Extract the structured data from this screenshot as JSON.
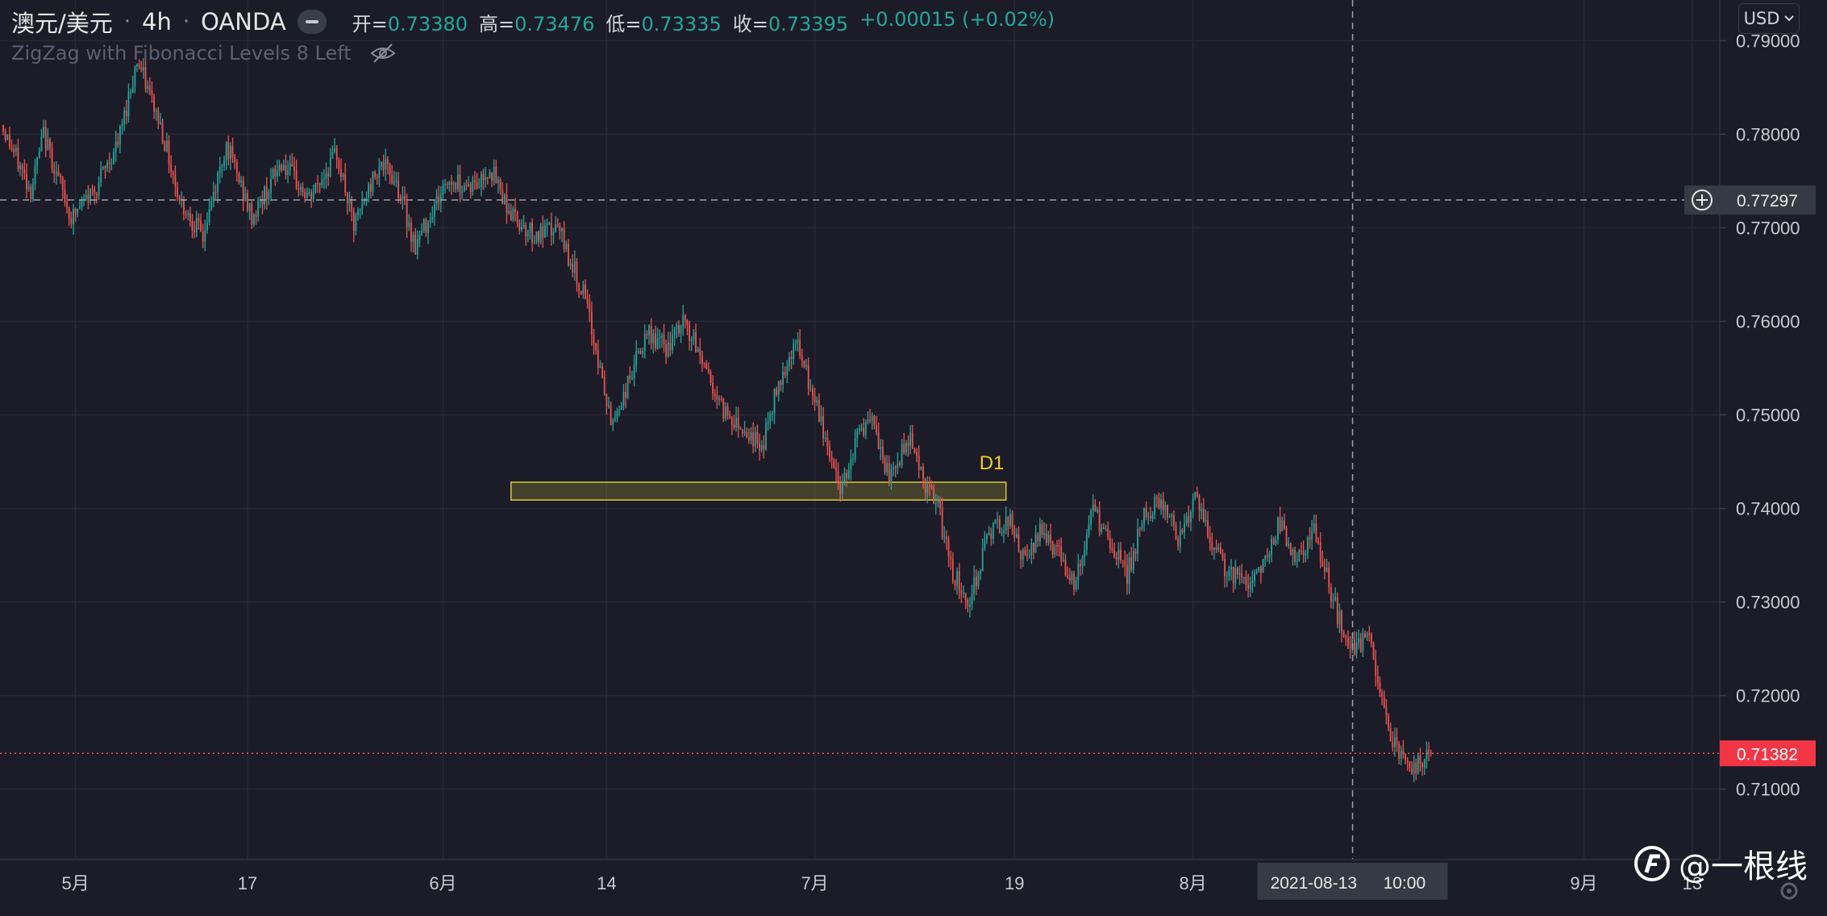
{
  "legend": {
    "symbol": "澳元/美元",
    "interval": "4h",
    "source": "OANDA",
    "open_label": "开=",
    "open": "0.73380",
    "high_label": "高=",
    "high": "0.73476",
    "low_label": "低=",
    "low": "0.73335",
    "close_label": "收=",
    "close": "0.73395",
    "change": "+0.00015 (+0.02%)"
  },
  "indicator": {
    "name": "ZigZag with Fibonacci Levels 8 Left",
    "icon": "eye-off-icon"
  },
  "currency_button": "USD",
  "watermark": "@一根线",
  "colors": {
    "background": "#1c1c28",
    "up": "#26a69a",
    "down": "#ef5350",
    "zone": "#d8c93a",
    "last_price": "#f23645"
  },
  "chart_data": {
    "type": "candlestick",
    "ylim": [
      0.7035,
      0.7928
    ],
    "y_ticks": [
      "0.79000",
      "0.78000",
      "0.77000",
      "0.76000",
      "0.75000",
      "0.74000",
      "0.73000",
      "0.72000",
      "0.71000"
    ],
    "x_ticks": [
      "5月",
      "17",
      "6月",
      "14",
      "7月",
      "19",
      "8月",
      "9月",
      "13"
    ],
    "crosshair": {
      "price": "0.77297",
      "date": "2021-08-13",
      "time": "10:00"
    },
    "last_price": "0.71382",
    "zone": {
      "label": "D1",
      "price_low": 0.7409,
      "price_high": 0.7428
    },
    "path": [
      [
        0,
        0.781
      ],
      [
        14,
        0.774
      ],
      [
        20,
        0.78
      ],
      [
        33,
        0.771
      ],
      [
        45,
        0.7745
      ],
      [
        55,
        0.779
      ],
      [
        64,
        0.788
      ],
      [
        75,
        0.781
      ],
      [
        84,
        0.773
      ],
      [
        95,
        0.769
      ],
      [
        106,
        0.779
      ],
      [
        118,
        0.771
      ],
      [
        132,
        0.777
      ],
      [
        145,
        0.773
      ],
      [
        158,
        0.778
      ],
      [
        166,
        0.77
      ],
      [
        178,
        0.777
      ],
      [
        186,
        0.775
      ],
      [
        195,
        0.768
      ],
      [
        203,
        0.772
      ],
      [
        210,
        0.775
      ],
      [
        224,
        0.7745
      ],
      [
        230,
        0.7765
      ],
      [
        240,
        0.7715
      ],
      [
        252,
        0.769
      ],
      [
        262,
        0.77
      ],
      [
        274,
        0.763
      ],
      [
        280,
        0.757
      ],
      [
        287,
        0.749
      ],
      [
        293,
        0.752
      ],
      [
        299,
        0.756
      ],
      [
        305,
        0.7585
      ],
      [
        314,
        0.757
      ],
      [
        321,
        0.76
      ],
      [
        332,
        0.755
      ],
      [
        338,
        0.751
      ],
      [
        350,
        0.7485
      ],
      [
        358,
        0.7465
      ],
      [
        366,
        0.7535
      ],
      [
        374,
        0.758
      ],
      [
        386,
        0.749
      ],
      [
        395,
        0.742
      ],
      [
        404,
        0.7485
      ],
      [
        410,
        0.749
      ],
      [
        418,
        0.743
      ],
      [
        428,
        0.748
      ],
      [
        434,
        0.743
      ],
      [
        441,
        0.74
      ],
      [
        448,
        0.733
      ],
      [
        456,
        0.73
      ],
      [
        464,
        0.737
      ],
      [
        474,
        0.739
      ],
      [
        482,
        0.734
      ],
      [
        490,
        0.738
      ],
      [
        498,
        0.735
      ],
      [
        506,
        0.732
      ],
      [
        514,
        0.74
      ],
      [
        522,
        0.736
      ],
      [
        530,
        0.733
      ],
      [
        538,
        0.739
      ],
      [
        546,
        0.741
      ],
      [
        554,
        0.737
      ],
      [
        562,
        0.741
      ],
      [
        570,
        0.736
      ],
      [
        578,
        0.733
      ],
      [
        586,
        0.732
      ],
      [
        594,
        0.734
      ],
      [
        602,
        0.7385
      ],
      [
        610,
        0.734
      ],
      [
        618,
        0.7375
      ],
      [
        626,
        0.731
      ],
      [
        634,
        0.725
      ],
      [
        644,
        0.726
      ],
      [
        652,
        0.717
      ],
      [
        658,
        0.714
      ],
      [
        664,
        0.712
      ],
      [
        672,
        0.7138
      ]
    ]
  }
}
